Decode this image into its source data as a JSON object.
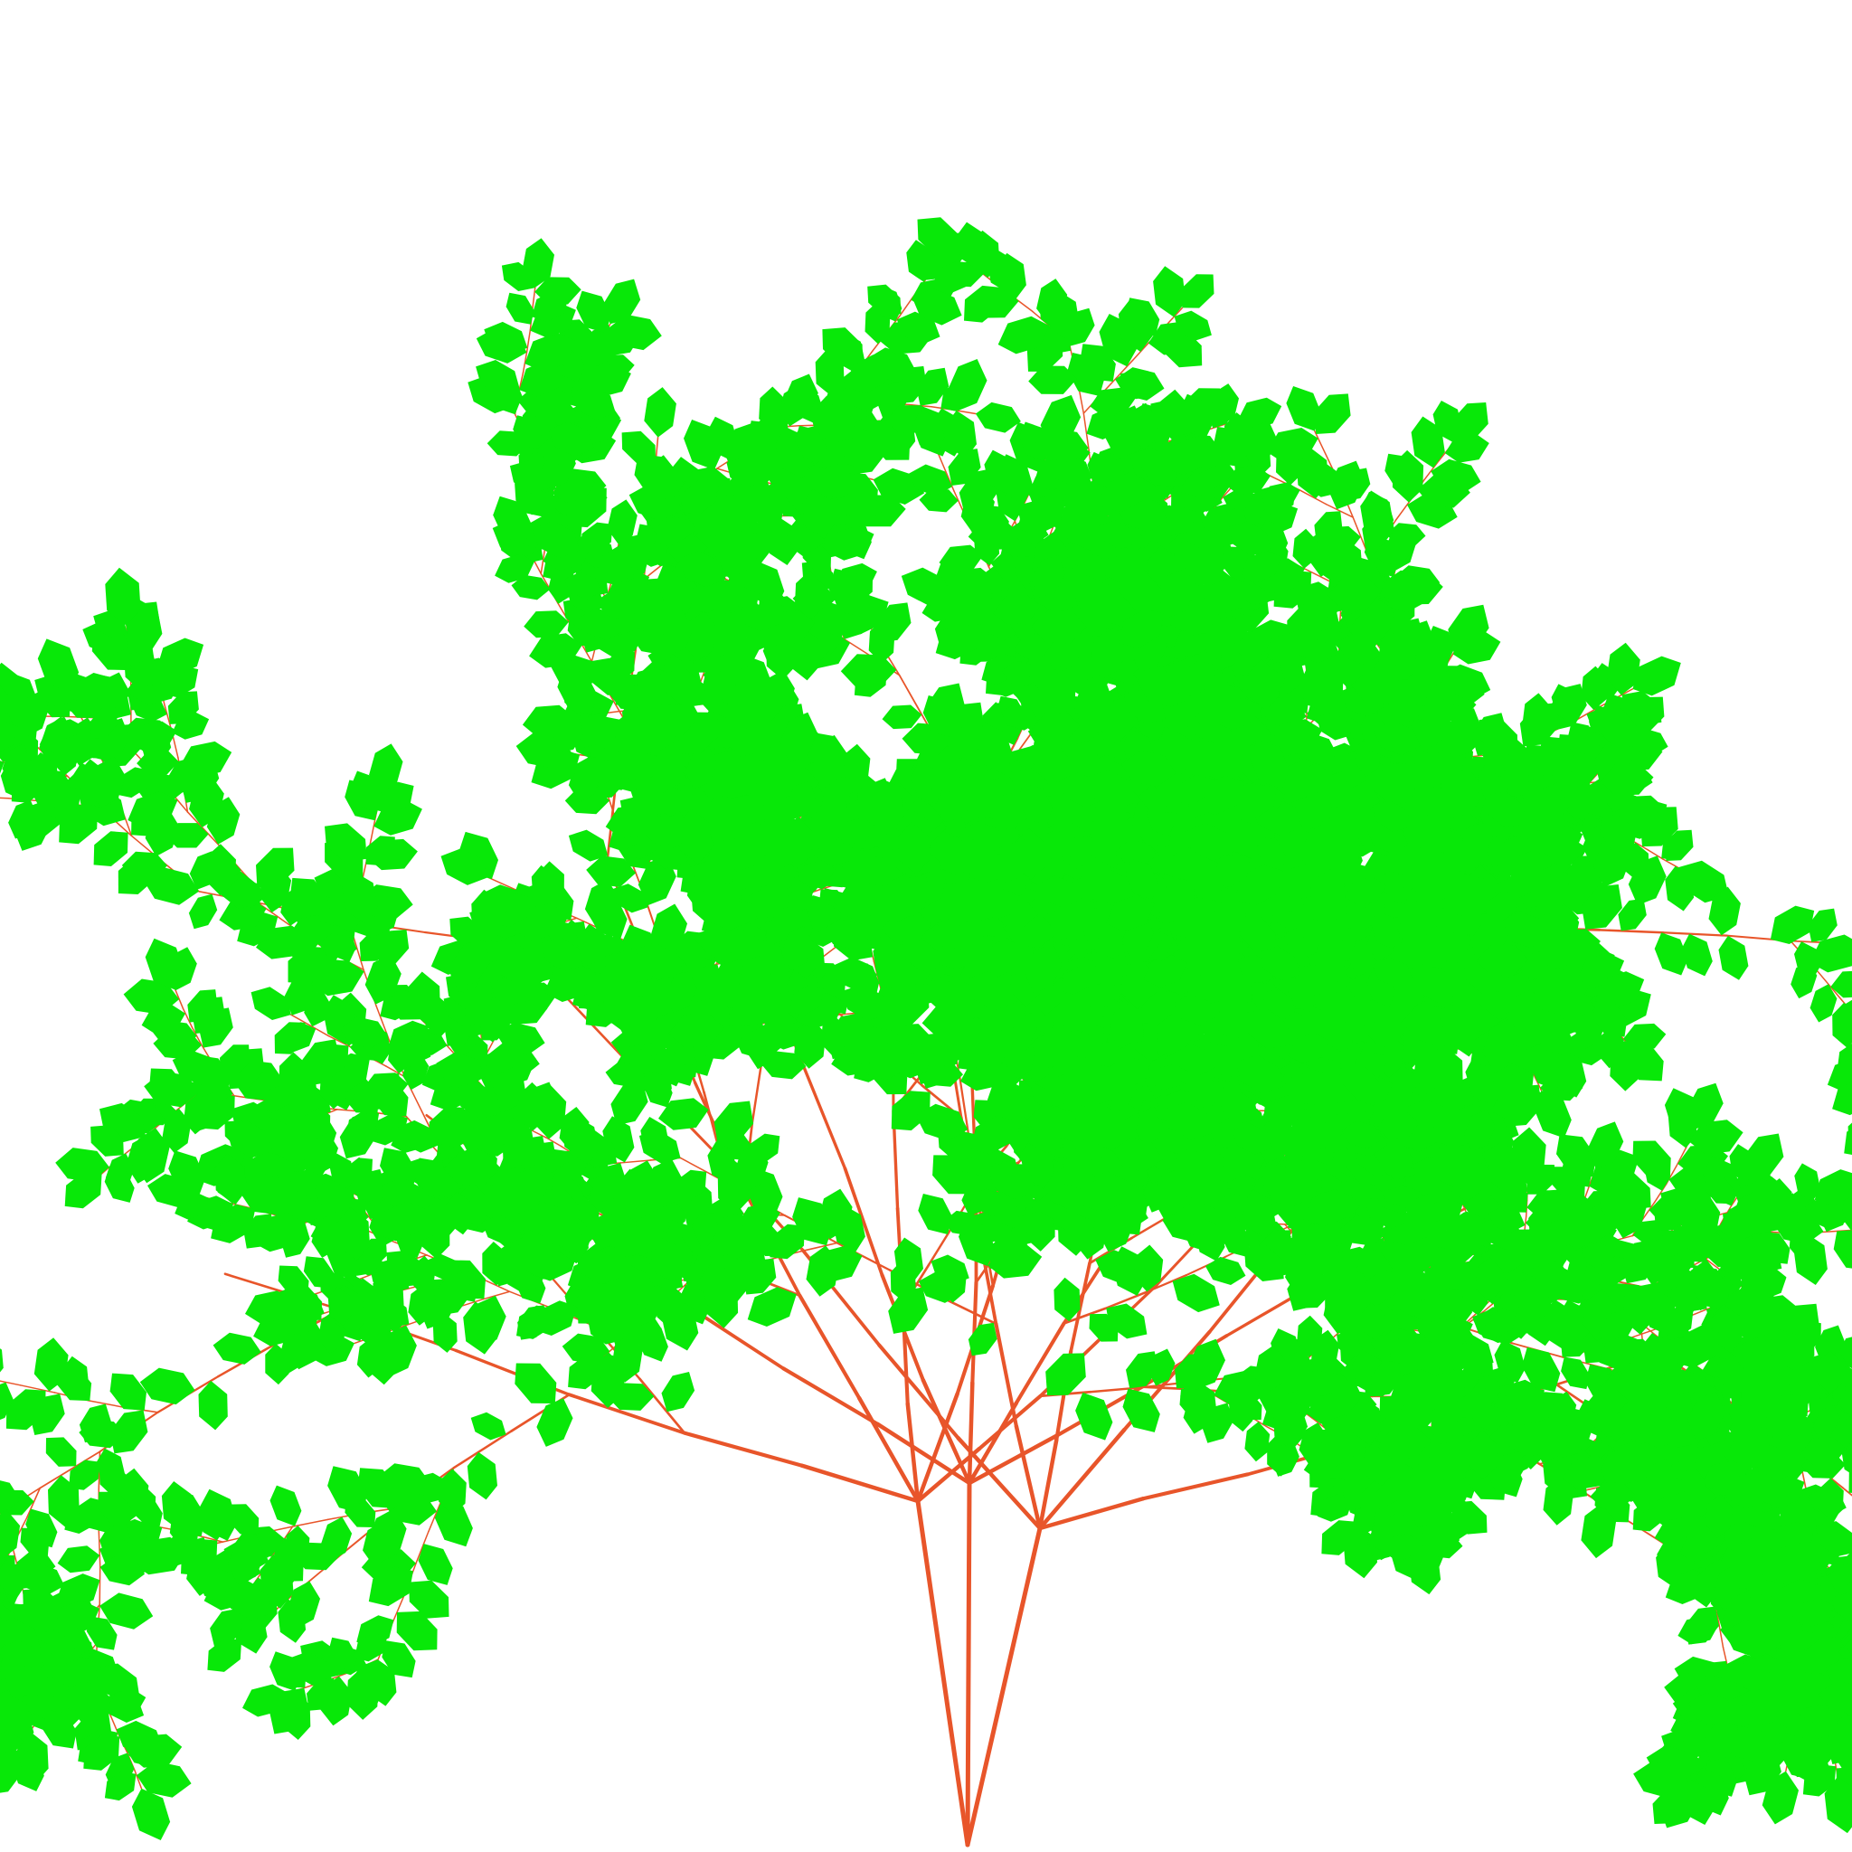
{
  "image": {
    "subject": "procedural-plant",
    "background_color": "#ffffff",
    "branch_color": "#e8552a",
    "leaf_color": "#08e808",
    "leaf_shape": "hexagon"
  }
}
